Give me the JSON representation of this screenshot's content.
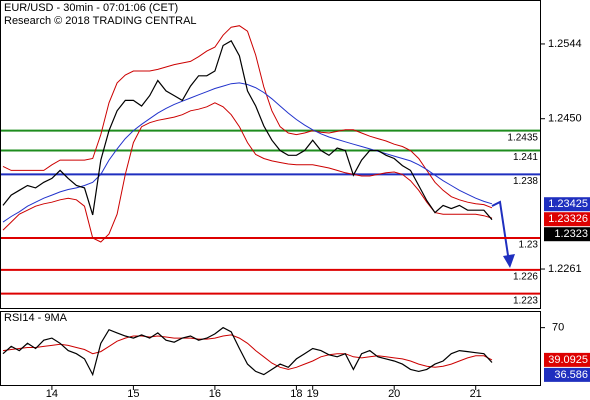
{
  "chart_data": [
    {
      "type": "price",
      "title": "EUR/USD - 30min - 07:01:06 (CET)",
      "subtitle": "Research © 2018 TRADING CENTRAL",
      "categories": [
        null,
        null,
        null,
        null,
        null,
        null,
        "14",
        null,
        null,
        null,
        null,
        null,
        null,
        null,
        null,
        null,
        "15",
        null,
        null,
        null,
        null,
        null,
        null,
        null,
        null,
        null,
        "16",
        null,
        null,
        null,
        null,
        null,
        null,
        null,
        null,
        null,
        "18",
        null,
        "19",
        null,
        null,
        null,
        null,
        null,
        null,
        null,
        null,
        null,
        "20",
        null,
        null,
        null,
        null,
        null,
        null,
        null,
        null,
        null,
        "21",
        null,
        null
      ],
      "ylim": [
        1.2212,
        1.2598
      ],
      "yticks": [
        1.2261,
        {
          "value": 1.245,
          "label": "1.2450"
        },
        1.2544
      ],
      "series": [
        {
          "name": "Price",
          "color": "#000000",
          "values": [
            1.2341,
            1.2354,
            1.236,
            1.2366,
            1.2363,
            1.237,
            1.2375,
            1.2385,
            1.2375,
            1.2366,
            1.2363,
            1.2329,
            1.2398,
            1.2435,
            1.246,
            1.2473,
            1.2473,
            1.2466,
            1.2479,
            1.2498,
            1.2485,
            1.2479,
            1.2473,
            1.2491,
            1.2504,
            1.2504,
            1.251,
            1.2542,
            1.2548,
            1.2529,
            1.2485,
            1.2466,
            1.2441,
            1.2423,
            1.241,
            1.2404,
            1.2404,
            1.241,
            1.2423,
            1.241,
            1.2404,
            1.2413,
            1.241,
            1.2379,
            1.2398,
            1.241,
            1.241,
            1.2404,
            1.24,
            1.2391,
            1.2385,
            1.2366,
            1.2347,
            1.2332,
            1.2341,
            1.2337,
            1.2341,
            1.2335,
            1.2335,
            1.2335,
            1.2323
          ]
        },
        {
          "name": "MA",
          "color": "#2233cc",
          "values": [
            1.232,
            1.2327,
            1.2333,
            1.234,
            1.2345,
            1.235,
            1.2354,
            1.2358,
            1.2361,
            1.2363,
            1.2366,
            1.237,
            1.238,
            1.2398,
            1.2412,
            1.2425,
            1.2435,
            1.2443,
            1.245,
            1.2457,
            1.2463,
            1.2468,
            1.2472,
            1.2476,
            1.248,
            1.2484,
            1.2488,
            1.2491,
            1.2494,
            1.2495,
            1.2493,
            1.2489,
            1.2483,
            1.2475,
            1.2466,
            1.2457,
            1.2449,
            1.2442,
            1.2436,
            1.2431,
            1.2427,
            1.2424,
            1.2421,
            1.2418,
            1.2415,
            1.2412,
            1.2409,
            1.2406,
            1.2403,
            1.24,
            1.2397,
            1.2392,
            1.2386,
            1.2379,
            1.2372,
            1.2366,
            1.236,
            1.2355,
            1.235,
            1.2346,
            1.2343
          ]
        },
        {
          "name": "Upper band",
          "color": "#cc0000",
          "values": [
            1.239,
            1.2385,
            1.2385,
            1.2385,
            1.2385,
            1.2385,
            1.2392,
            1.2398,
            1.2398,
            1.2398,
            1.2398,
            1.24,
            1.243,
            1.247,
            1.2495,
            1.2505,
            1.251,
            1.251,
            1.251,
            1.2512,
            1.2515,
            1.2518,
            1.252,
            1.2522,
            1.2528,
            1.2535,
            1.254,
            1.2555,
            1.2565,
            1.2567,
            1.256,
            1.253,
            1.249,
            1.246,
            1.244,
            1.2432,
            1.243,
            1.2432,
            1.2435,
            1.2433,
            1.2432,
            1.2434,
            1.2436,
            1.2436,
            1.2432,
            1.2428,
            1.2425,
            1.2422,
            1.2418,
            1.2415,
            1.241,
            1.24,
            1.2385,
            1.237,
            1.236,
            1.2352,
            1.2348,
            1.2345,
            1.2343,
            1.2342,
            1.2338
          ]
        },
        {
          "name": "Lower band",
          "color": "#cc0000",
          "values": [
            1.231,
            1.232,
            1.233,
            1.2335,
            1.234,
            1.2343,
            1.2345,
            1.2348,
            1.235,
            1.2348,
            1.234,
            1.23,
            1.2295,
            1.2305,
            1.233,
            1.238,
            1.242,
            1.244,
            1.2445,
            1.2448,
            1.245,
            1.2452,
            1.2455,
            1.246,
            1.2462,
            1.2465,
            1.247,
            1.2465,
            1.2455,
            1.244,
            1.242,
            1.2405,
            1.24,
            1.2397,
            1.2395,
            1.2393,
            1.2392,
            1.2392,
            1.2392,
            1.239,
            1.2388,
            1.2385,
            1.2382,
            1.238,
            1.2378,
            1.2378,
            1.238,
            1.2382,
            1.2383,
            1.238,
            1.2372,
            1.236,
            1.2345,
            1.2332,
            1.233,
            1.233,
            1.233,
            1.233,
            1.233,
            1.2328,
            1.2325
          ]
        }
      ],
      "levels": [
        {
          "value": 1.2435,
          "color": "#1e8c1e"
        },
        {
          "value": 1.241,
          "color": "#1e8c1e"
        },
        {
          "value": 1.238,
          "color": "#1f2fbf"
        },
        {
          "value": 1.23,
          "color": "#dd0000"
        },
        {
          "value": 1.226,
          "color": "#dd0000"
        },
        {
          "value": 1.223,
          "color": "#dd0000"
        }
      ],
      "markers": [
        {
          "value": 1.23425,
          "color": "#1f2fbf"
        },
        {
          "value": 1.23326,
          "color": "#dd0000"
        },
        {
          "value": 1.2323,
          "color": "#000000"
        }
      ]
    },
    {
      "type": "indicator",
      "title": "RSI14 - 9MA",
      "ylim": [
        15,
        85
      ],
      "yticks": [
        70
      ],
      "series": [
        {
          "name": "RSI",
          "color": "#000000",
          "values": [
            45,
            52,
            48,
            55,
            50,
            58,
            60,
            55,
            48,
            45,
            40,
            25,
            55,
            68,
            65,
            62,
            60,
            63,
            60,
            65,
            58,
            56,
            60,
            62,
            58,
            60,
            64,
            70,
            66,
            50,
            35,
            28,
            25,
            30,
            35,
            32,
            40,
            45,
            50,
            48,
            44,
            42,
            45,
            30,
            45,
            48,
            42,
            40,
            38,
            35,
            30,
            28,
            30,
            35,
            38,
            45,
            48,
            47,
            46,
            45,
            36.586
          ]
        },
        {
          "name": "RSI MA",
          "color": "#cc0000",
          "values": [
            48,
            49,
            50,
            51,
            51,
            52,
            53,
            54,
            53,
            51,
            49,
            45,
            47,
            52,
            57,
            60,
            62,
            62,
            61,
            62,
            61,
            60,
            60,
            60,
            59,
            59,
            60,
            62,
            63,
            60,
            55,
            48,
            42,
            36,
            32,
            30,
            32,
            35,
            38,
            42,
            44,
            45,
            45,
            42,
            41,
            42,
            43,
            42,
            41,
            40,
            38,
            35,
            33,
            32,
            33,
            35,
            38,
            41,
            43,
            43,
            39.0925
          ]
        }
      ],
      "markers": [
        {
          "value": 39.0925,
          "color": "#dd0000"
        },
        {
          "value": 36.586,
          "color": "#1f2fbf"
        }
      ]
    }
  ]
}
